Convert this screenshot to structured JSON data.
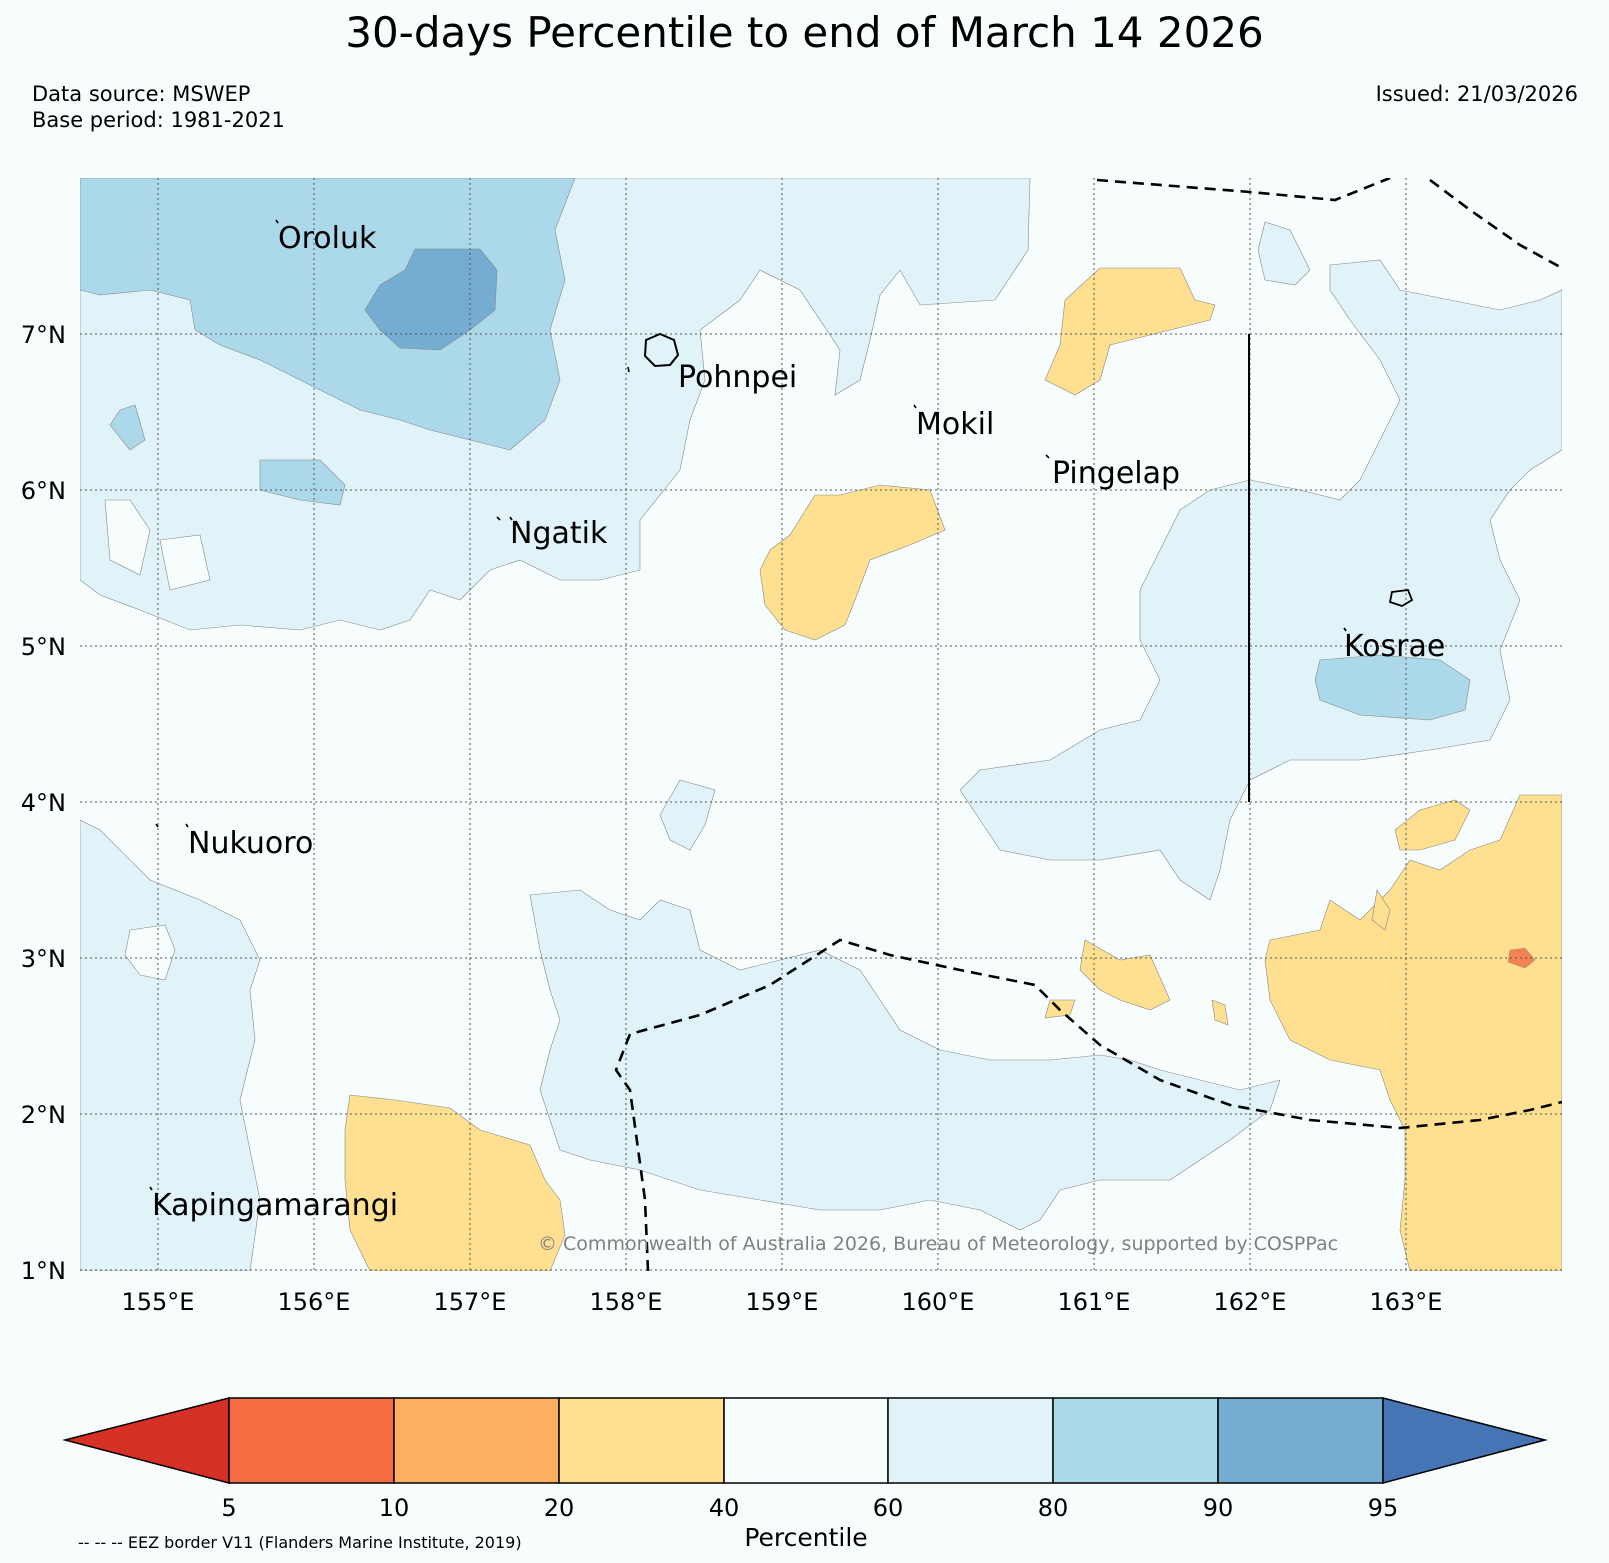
{
  "title": "30-days Percentile to end of March 14 2026",
  "data_source": "Data source: MSWEP",
  "base_period": "Base period: 1981-2021",
  "issued": "Issued: 21/03/2026",
  "credit": "© Commonwealth of Australia 2026, Bureau of Meteorology, supported by COSPPac",
  "map": {
    "lon_range": [
      154.5,
      164.0
    ],
    "lat_range": [
      1.0,
      8.0
    ],
    "lat_labels": [
      "7°N",
      "6°N",
      "5°N",
      "4°N",
      "3°N",
      "2°N",
      "1°N"
    ],
    "lon_labels": [
      "155°E",
      "156°E",
      "157°E",
      "158°E",
      "159°E",
      "160°E",
      "161°E",
      "162°E",
      "163°E"
    ],
    "places": [
      {
        "name": "Oroluk"
      },
      {
        "name": "Pohnpei"
      },
      {
        "name": "Mokil"
      },
      {
        "name": "Pingelap"
      },
      {
        "name": "Ngatik"
      },
      {
        "name": "Kosrae"
      },
      {
        "name": "Nukuoro"
      },
      {
        "name": "Kapingamarangi"
      }
    ]
  },
  "colorbar": {
    "title": "Percentile",
    "ticks": [
      "5",
      "10",
      "20",
      "40",
      "60",
      "80",
      "90",
      "95"
    ],
    "colors": [
      "#d73027",
      "#f46d43",
      "#fdae61",
      "#fee090",
      "#f7fcfd",
      "#e0f3f8",
      "#abd9e9",
      "#74add1",
      "#4575b4"
    ]
  },
  "eez_note": "-- -- -- EEZ border V11 (Flanders Marine Institute, 2019)",
  "colors": {
    "background": "#f7fcfd",
    "pct_20_40": "#fee090",
    "pct_10_20": "#fdae61",
    "pct_5_10": "#f46d43",
    "pct_60_80": "#e0f3f8",
    "pct_80_90": "#abd9e9",
    "pct_90_95": "#74add1"
  }
}
